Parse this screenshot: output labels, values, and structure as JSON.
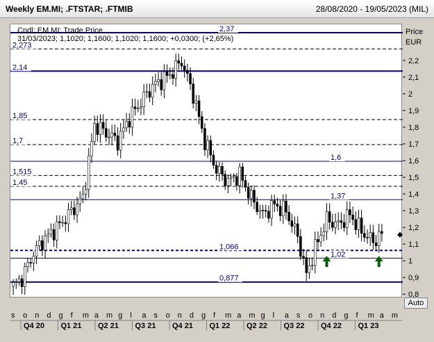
{
  "window": {
    "title": "Weekly EM.MI; .FTSTAR; .FTMIB",
    "date_range": "28/08/2020 - 19/05/2023 (MIL)"
  },
  "legend": {
    "line1": "Cndl; EM.MI; Trade Price",
    "line2": "31/03/2023; 1,1020; 1,1600; 1,1020; 1,1600; +0,0300; (+2,65%)"
  },
  "axis": {
    "title": "Price",
    "unit": "EUR",
    "ticks": [
      {
        "v": 2.2,
        "label": "2,2"
      },
      {
        "v": 2.1,
        "label": "2,1"
      },
      {
        "v": 2.0,
        "label": "2"
      },
      {
        "v": 1.9,
        "label": "1,9"
      },
      {
        "v": 1.8,
        "label": "1,8"
      },
      {
        "v": 1.7,
        "label": "1,7"
      },
      {
        "v": 1.6,
        "label": "1,6"
      },
      {
        "v": 1.5,
        "label": "1,5"
      },
      {
        "v": 1.4,
        "label": "1,4"
      },
      {
        "v": 1.3,
        "label": "1,3"
      },
      {
        "v": 1.2,
        "label": "1,2"
      },
      {
        "v": 1.1,
        "label": "1,1"
      },
      {
        "v": 1.0,
        "label": "1"
      },
      {
        "v": 0.9,
        "label": "0,9"
      },
      {
        "v": 0.8,
        "label": "0,8"
      }
    ],
    "auto_label": "Auto"
  },
  "months": [
    "s",
    "o",
    "n",
    "d",
    "g",
    "f",
    "m",
    "a",
    "m",
    "g",
    "l",
    "a",
    "s",
    "o",
    "n",
    "d",
    "g",
    "f",
    "m",
    "a",
    "m",
    "g",
    "l",
    "a",
    "s",
    "o",
    "n",
    "d",
    "g",
    "f",
    "m",
    "a",
    "m"
  ],
  "quarters": [
    "Q4 20",
    "Q1 21",
    "Q2 21",
    "Q3 21",
    "Q4 21",
    "Q1 22",
    "Q2 22",
    "Q3 22",
    "Q4 22",
    "Q1 23"
  ],
  "levels": [
    {
      "value": 2.37,
      "label": "2,37",
      "style": "thick",
      "label_pos": "mid"
    },
    {
      "value": 2.273,
      "label": "2,273",
      "style": "dashed",
      "label_pos": "left"
    },
    {
      "value": 2.14,
      "label": "2,14",
      "style": "thick",
      "label_pos": "left"
    },
    {
      "value": 1.85,
      "label": "1,85",
      "style": "dashed",
      "label_pos": "left"
    },
    {
      "value": 1.7,
      "label": "1,7",
      "style": "dashed",
      "label_pos": "left"
    },
    {
      "value": 1.6,
      "label": "1,6",
      "style": "thin",
      "label_pos": "right"
    },
    {
      "value": 1.515,
      "label": "1,515",
      "style": "dashed",
      "label_pos": "left"
    },
    {
      "value": 1.45,
      "label": "1,45",
      "style": "dashed",
      "label_pos": "left"
    },
    {
      "value": 1.37,
      "label": "1,37",
      "style": "thin",
      "label_pos": "right"
    },
    {
      "value": 1.066,
      "label": "1,066",
      "style": "thickdash",
      "label_pos": "mid"
    },
    {
      "value": 1.02,
      "label": "1,02",
      "style": "thin",
      "label_pos": "right"
    },
    {
      "value": 0.877,
      "label": "0,877",
      "style": "thick",
      "label_pos": "mid"
    }
  ],
  "chart_data": {
    "type": "candlestick",
    "y_range": [
      0.78,
      2.42
    ],
    "currency": "EUR",
    "close_path": [
      [
        0,
        0.85
      ],
      [
        3,
        0.9
      ],
      [
        7,
        1.05
      ],
      [
        10,
        1.12
      ],
      [
        16,
        1.22
      ],
      [
        24,
        1.38
      ],
      [
        28,
        1.82
      ],
      [
        36,
        1.72
      ],
      [
        40,
        1.86
      ],
      [
        48,
        2.05
      ],
      [
        54,
        2.12
      ],
      [
        58,
        2.2
      ],
      [
        62,
        2.0
      ],
      [
        66,
        1.72
      ],
      [
        70,
        1.55
      ],
      [
        74,
        1.48
      ],
      [
        78,
        1.52
      ],
      [
        82,
        1.38
      ],
      [
        86,
        1.28
      ],
      [
        90,
        1.34
      ],
      [
        94,
        1.3
      ],
      [
        98,
        1.15
      ],
      [
        101,
        0.92
      ],
      [
        104,
        1.08
      ],
      [
        108,
        1.25
      ],
      [
        112,
        1.22
      ],
      [
        116,
        1.28
      ],
      [
        120,
        1.18
      ],
      [
        124,
        1.12
      ],
      [
        127,
        1.16
      ]
    ],
    "signals": [
      {
        "label": "arrow-up",
        "x_index": 108
      },
      {
        "label": "arrow-up",
        "x_index": 126
      }
    ]
  }
}
